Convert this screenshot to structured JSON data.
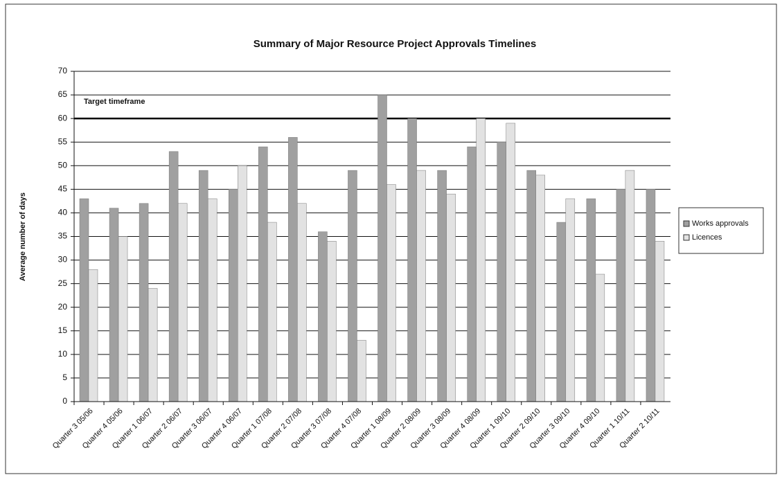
{
  "chart_data": {
    "type": "bar",
    "title": "Summary of Major Resource Project Approvals Timelines",
    "y_label": "Average number of days",
    "categories": [
      "Quarter 3 05/06",
      "Quarter 4 05/06",
      "Quarter 1 06/07",
      "Quarter 2 06/07",
      "Quarter 3 06/07",
      "Quarter 4 06/07",
      "Quarter 1 07/08",
      "Quarter 2 07/08",
      "Quarter 3 07/08",
      "Quarter 4 07/08",
      "Quarter 1 08/09",
      "Quarter 2 08/09",
      "Quarter 3 08/09",
      "Quarter 4 08/09",
      "Quarter 1 09/10",
      "Quarter 2 09/10",
      "Quarter 3 09/10",
      "Quarter 4 09/10",
      "Quarter 1 10/11",
      "Quarter 2 10/11"
    ],
    "series": [
      {
        "name": "Works approvals",
        "color": "#a0a0a0",
        "values": [
          43,
          41,
          42,
          53,
          49,
          45,
          54,
          56,
          36,
          49,
          65,
          60,
          49,
          54,
          55,
          49,
          38,
          43,
          45,
          45
        ]
      },
      {
        "name": "Licences",
        "color": "#e2e2e2",
        "values": [
          28,
          35,
          24,
          42,
          43,
          50,
          38,
          42,
          34,
          13,
          46,
          49,
          44,
          60,
          59,
          48,
          43,
          27,
          49,
          34
        ]
      }
    ],
    "target": {
      "label": "Target timeframe",
      "value": 60
    },
    "ylim": [
      0,
      70
    ],
    "yticks": [
      0,
      5,
      10,
      15,
      20,
      25,
      30,
      35,
      40,
      45,
      50,
      55,
      60,
      65,
      70
    ],
    "grid": true,
    "legend": "right"
  }
}
